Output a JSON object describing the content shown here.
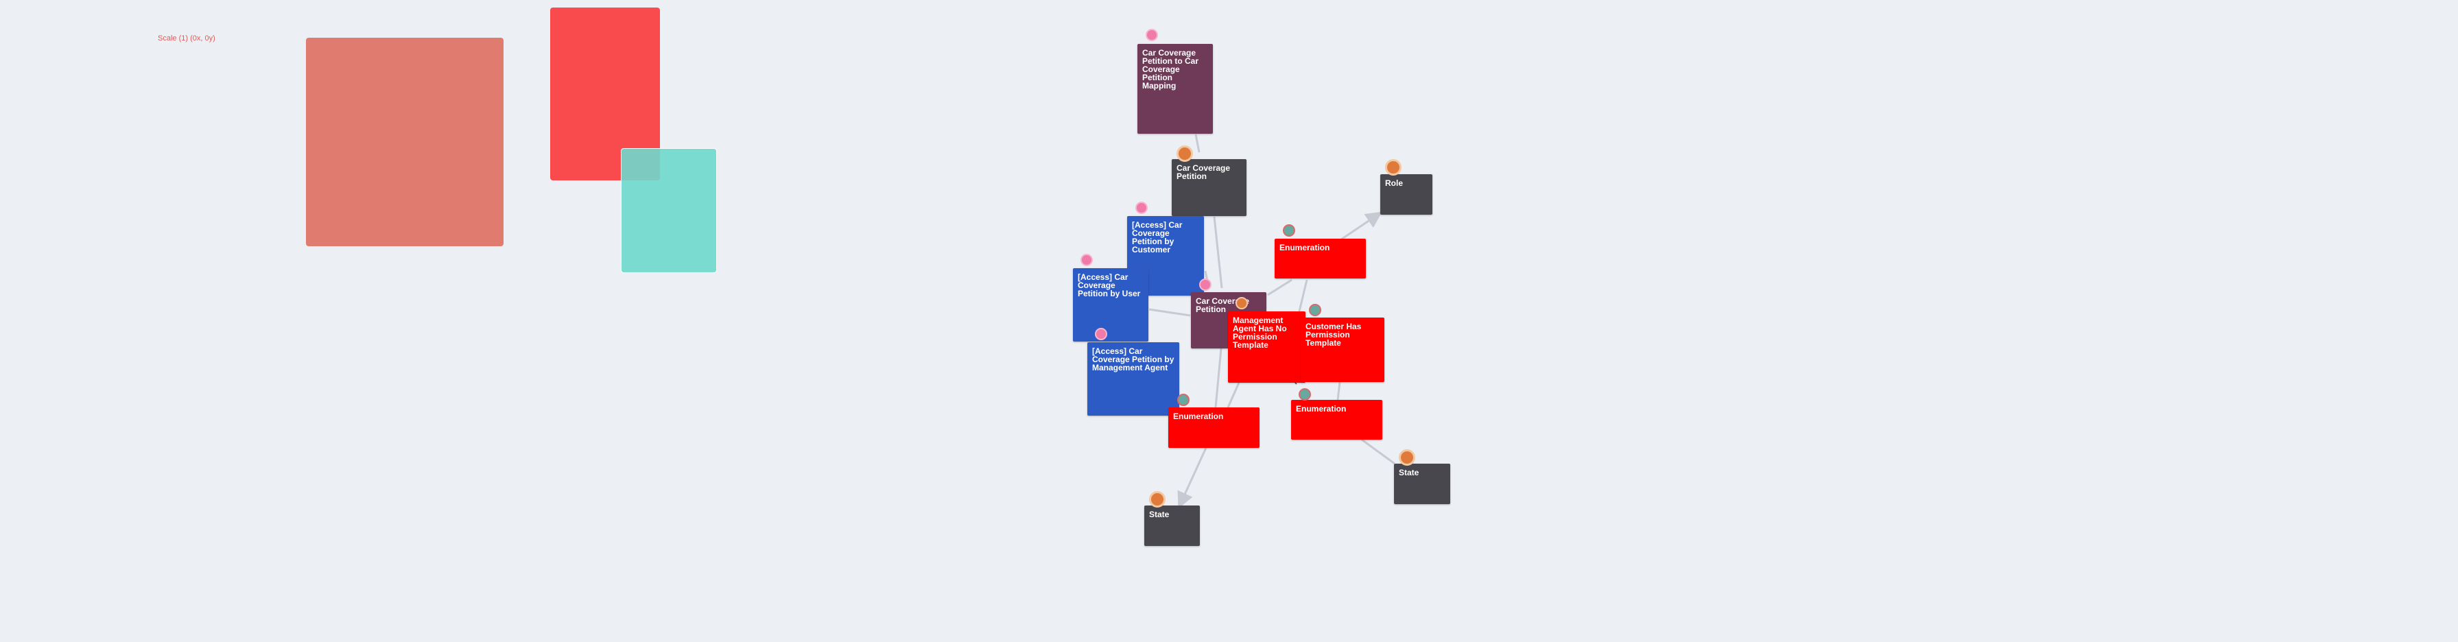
{
  "scale_label": "Scale (1) (0x, 0y)",
  "colors": {
    "background": "#eceff4",
    "purple": "#6e3a58",
    "dark": "#47474d",
    "blue": "#2d5bc6",
    "red": "#ff0000",
    "edge": "#c7c9d3"
  },
  "nodes": {
    "mapping": "Car Coverage Petition to Car Coverage Petition Mapping",
    "petition_top": "Car Coverage Petition",
    "role": "Role",
    "access_customer": "[Access] Car Coverage Petition by Customer",
    "enumeration_right": "Enumeration",
    "access_user": "[Access] Car Coverage Petition by User",
    "petition_center": "Car Coverage Petition",
    "management_agent_template": "Management Agent Has No Permission Template",
    "customer_template": "Customer Has Permission Template",
    "access_management": "[Access] Car Coverage Petition by Management Agent",
    "enumeration_bottom_left": "Enumeration",
    "enumeration_bottom_right": "Enumeration",
    "state_right": "State",
    "state_left": "State"
  }
}
